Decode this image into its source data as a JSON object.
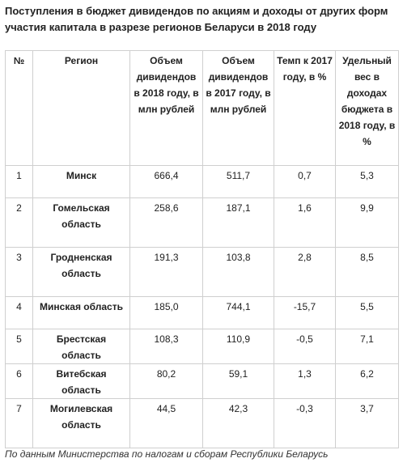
{
  "title": "Поступления в бюджет дивидендов по акциям и доходы от других форм участия капитала в разрезе регионов Беларуси в 2018 году",
  "table": {
    "headers": [
      "№",
      "Регион",
      "Объем дивидендов в 2018 году, в млн рублей",
      "Объем дивидендов в 2017 году, в млн рублей",
      "Темп к 2017 году, в %",
      "Удельный вес в доходах бюджета в 2018 году, в %"
    ],
    "rows": [
      [
        "1",
        "Минск",
        "666,4",
        "511,7",
        "0,7",
        "5,3"
      ],
      [
        "2",
        "Гомельская область",
        "258,6",
        "187,1",
        "1,6",
        "9,9"
      ],
      [
        "3",
        "Гродненская область",
        "191,3",
        "103,8",
        "2,8",
        "8,5"
      ],
      [
        "4",
        "Минская область",
        "185,0",
        "744,1",
        "-15,7",
        "5,5"
      ],
      [
        "5",
        "Брестская область",
        "108,3",
        "110,9",
        "-0,5",
        "7,1"
      ],
      [
        "6",
        "Витебская область",
        "80,2",
        "59,1",
        "1,3",
        "6,2"
      ],
      [
        "7",
        "Могилевская область",
        "44,5",
        "42,3",
        "-0,3",
        "3,7"
      ]
    ]
  },
  "source": "По данным Министерства по налогам и сборам Республики Беларусь"
}
